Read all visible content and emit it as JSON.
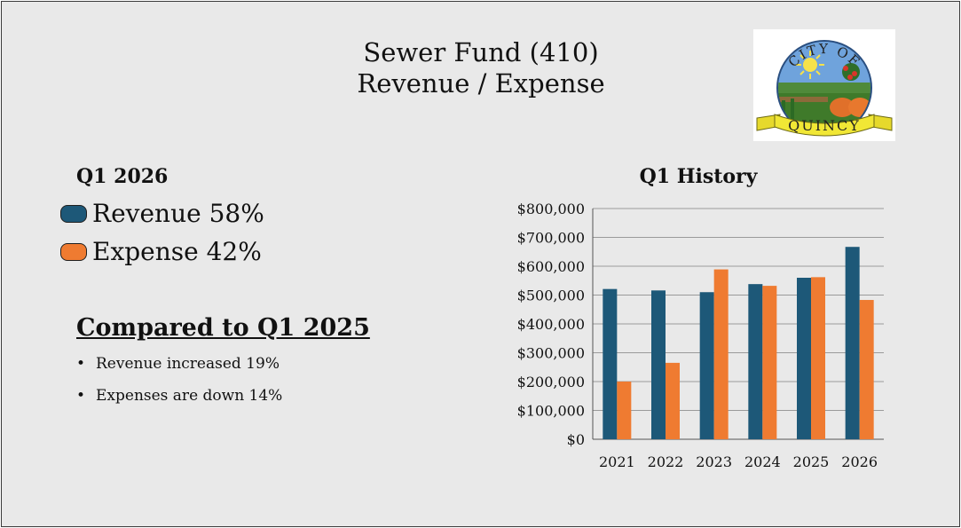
{
  "slide": {
    "title_line1": "Sewer Fund (410)",
    "title_line2": "Revenue / Expense",
    "logo": {
      "text_top": "CITY OF",
      "text_banner": "QUINCY"
    },
    "current": {
      "heading": "Q1 2026",
      "legend": [
        {
          "label": "Revenue 58%",
          "color": "#1d5878"
        },
        {
          "label": "Expense 42%",
          "color": "#ef7b31"
        }
      ]
    },
    "comparison": {
      "heading": "Compared to Q1 2025",
      "bullets": [
        "Revenue increased 19%",
        "Expenses are down 14%"
      ]
    },
    "chart_title": "Q1 History"
  },
  "chart_data": {
    "type": "bar",
    "title": "Q1 History",
    "categories": [
      "2021",
      "2022",
      "2023",
      "2024",
      "2025",
      "2026"
    ],
    "series": [
      {
        "name": "Revenue",
        "color": "#1d5878",
        "values": [
          521000,
          516000,
          510000,
          538000,
          560000,
          667000
        ]
      },
      {
        "name": "Expense",
        "color": "#ef7b31",
        "values": [
          200000,
          265000,
          589000,
          532000,
          562000,
          483000
        ]
      }
    ],
    "ylim": [
      0,
      800000
    ],
    "yticks": [
      0,
      100000,
      200000,
      300000,
      400000,
      500000,
      600000,
      700000,
      800000
    ],
    "ytick_labels": [
      "$0",
      "$100,000",
      "$200,000",
      "$300,000",
      "$400,000",
      "$500,000",
      "$600,000",
      "$700,000",
      "$800,000"
    ],
    "grid": true,
    "legend": "none"
  }
}
